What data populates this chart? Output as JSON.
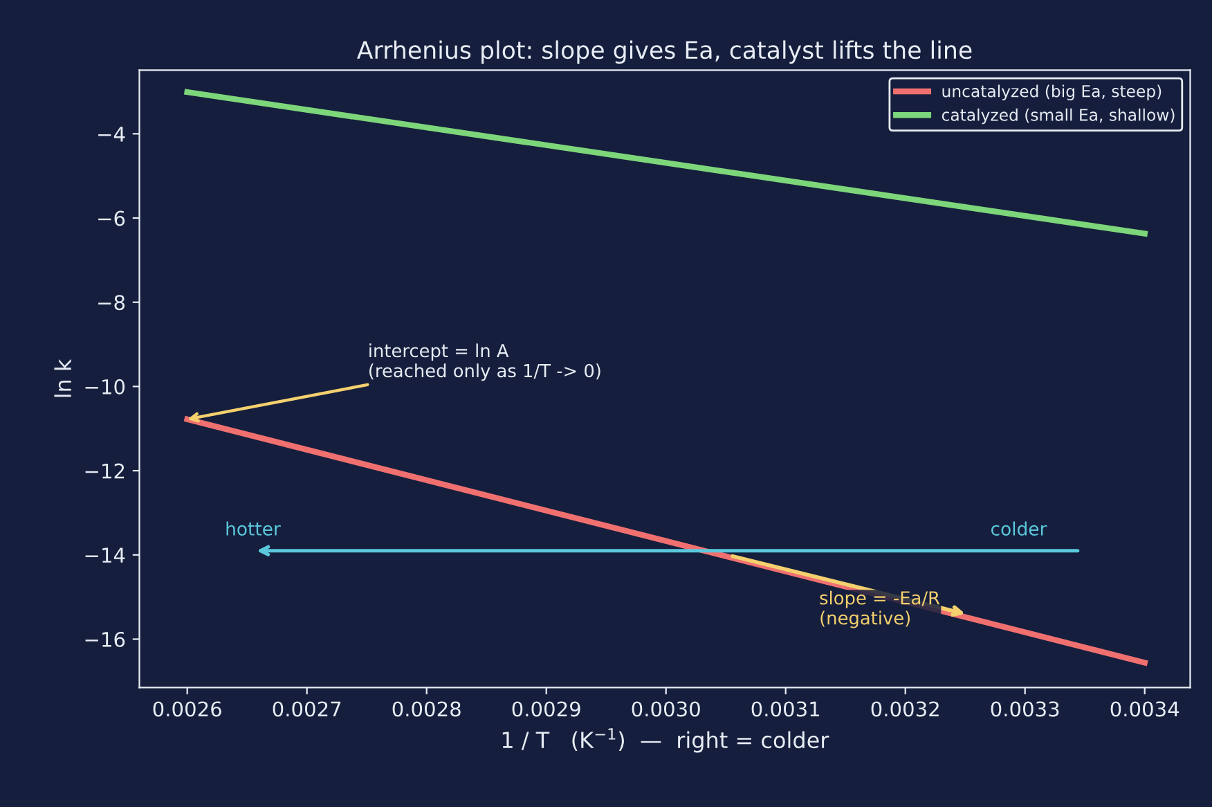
{
  "chart_data": {
    "type": "line",
    "title": "Arrhenius plot: slope gives Ea, catalyst lifts the line",
    "xlabel": "1 / T   (K$^{−1}$)  —  right = colder",
    "ylabel": "ln k",
    "x": [
      0.0026,
      0.0034
    ],
    "series": [
      {
        "name": "uncatalyzed (big Ea, steep)",
        "color": "#f07070",
        "values": [
          -10.78,
          -16.56
        ]
      },
      {
        "name": "catalyzed (small Ea, shallow)",
        "color": "#7dd67a",
        "values": [
          -3.01,
          -6.37
        ]
      },
      {
        "color": "#5bc8dc",
        "x": [
          0.003344,
          0.002658
        ],
        "values": [
          -13.9,
          -13.9
        ]
      }
    ],
    "annotations": [
      {
        "text": "intercept = ln A\n(reached only as 1/T -> 0)",
        "x": 0.0026,
        "y": -10.78
      },
      {
        "text": "slope = -Ea/R\n(negative)",
        "x": 0.00325,
        "y": -15.4
      },
      "colder",
      "hotter"
    ],
    "xlim": [
      0.00256,
      0.003438
    ],
    "ylim": [
      -17.15,
      -2.49
    ],
    "xticks": [
      {
        "value": 0.0026,
        "label": "0.0026"
      },
      {
        "value": 0.0027,
        "label": "0.0027"
      },
      {
        "value": 0.0028,
        "label": "0.0028"
      },
      {
        "value": 0.0029,
        "label": "0.0029"
      },
      {
        "value": 0.003,
        "label": "0.0030"
      },
      {
        "value": 0.0031,
        "label": "0.0031"
      },
      {
        "value": 0.0032,
        "label": "0.0032"
      },
      {
        "value": 0.0033,
        "label": "0.0033"
      },
      {
        "value": 0.0034,
        "label": "0.0034"
      }
    ],
    "yticks": [
      {
        "value": -4,
        "label": "−4"
      },
      {
        "value": -6,
        "label": "−6"
      },
      {
        "value": -8,
        "label": "−8"
      },
      {
        "value": -10,
        "label": "−10"
      },
      {
        "value": -12,
        "label": "−12"
      },
      {
        "value": -14,
        "label": "−14"
      },
      {
        "value": -16,
        "label": "−16"
      }
    ],
    "grid": false,
    "legend": "top right",
    "line_style": "solid",
    "marker": "none"
  }
}
